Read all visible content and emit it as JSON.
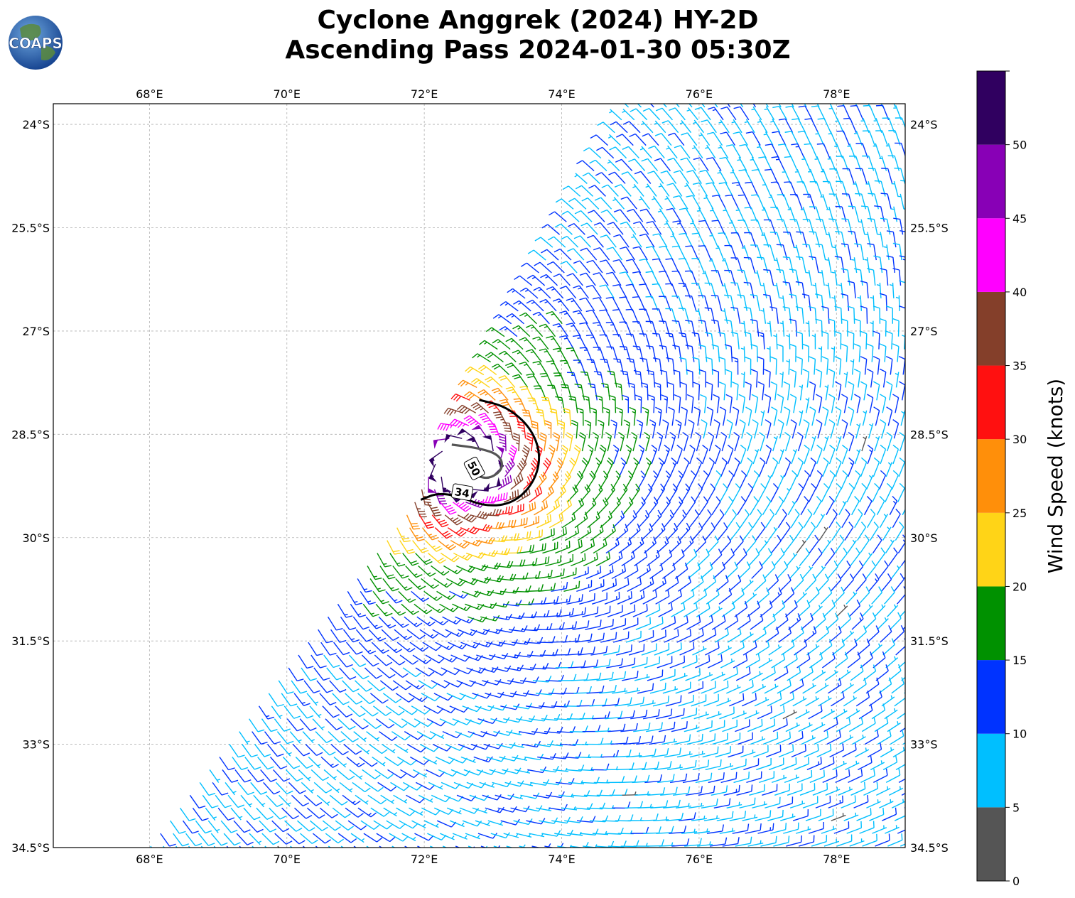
{
  "title": {
    "line1": "Cyclone Anggrek (2024) HY-2D",
    "line2": "Ascending Pass 2024-01-30 05:30Z"
  },
  "logo": {
    "text": "COAPS",
    "icon": "globe-icon"
  },
  "map": {
    "lon_range": [
      66.6,
      79.0
    ],
    "lat_range": [
      -34.5,
      -23.7
    ],
    "lon_ticks": [
      {
        "value": 68,
        "label": "68°E"
      },
      {
        "value": 70,
        "label": "70°E"
      },
      {
        "value": 72,
        "label": "72°E"
      },
      {
        "value": 74,
        "label": "74°E"
      },
      {
        "value": 76,
        "label": "76°E"
      },
      {
        "value": 78,
        "label": "78°E"
      }
    ],
    "lat_ticks": [
      {
        "value": -24,
        "label": "24°S"
      },
      {
        "value": -25.5,
        "label": "25.5°S"
      },
      {
        "value": -27,
        "label": "27°S"
      },
      {
        "value": -28.5,
        "label": "28.5°S"
      },
      {
        "value": -30,
        "label": "30°S"
      },
      {
        "value": -31.5,
        "label": "31.5°S"
      },
      {
        "value": -33,
        "label": "33°S"
      },
      {
        "value": -34.5,
        "label": "34.5°S"
      }
    ],
    "grid": true,
    "cyclone_center": {
      "lon": 72.6,
      "lat": -28.95
    },
    "contours": [
      {
        "label": "34",
        "speed_kt": 34,
        "color": "#000000",
        "points": [
          [
            72.8,
            -28.0
          ],
          [
            73.2,
            -28.1
          ],
          [
            73.55,
            -28.4
          ],
          [
            73.7,
            -28.8
          ],
          [
            73.6,
            -29.2
          ],
          [
            73.3,
            -29.5
          ],
          [
            72.9,
            -29.55
          ],
          [
            72.5,
            -29.4
          ],
          [
            72.2,
            -29.35
          ],
          [
            71.95,
            -29.45
          ]
        ]
      },
      {
        "label": "50",
        "speed_kt": 50,
        "color": "#555555",
        "points": [
          [
            72.4,
            -28.65
          ],
          [
            72.8,
            -28.7
          ],
          [
            73.1,
            -28.8
          ],
          [
            73.15,
            -29.0
          ],
          [
            72.95,
            -29.15
          ],
          [
            72.75,
            -29.1
          ]
        ]
      }
    ],
    "swath_edge": [
      [
        75.0,
        -23.7
      ],
      [
        71.8,
        -29.6
      ],
      [
        68.0,
        -34.5
      ]
    ]
  },
  "chart_data": {
    "type": "wind-barbs",
    "units": "knots",
    "scale": [
      {
        "min": 0,
        "max": 5,
        "color": "#555555"
      },
      {
        "min": 5,
        "max": 10,
        "color": "#00bfff"
      },
      {
        "min": 10,
        "max": 15,
        "color": "#0033ff"
      },
      {
        "min": 15,
        "max": 20,
        "color": "#009100"
      },
      {
        "min": 20,
        "max": 25,
        "color": "#ffd417"
      },
      {
        "min": 25,
        "max": 30,
        "color": "#ff8f0a"
      },
      {
        "min": 30,
        "max": 35,
        "color": "#ff1010"
      },
      {
        "min": 35,
        "max": 40,
        "color": "#843f2a"
      },
      {
        "min": 40,
        "max": 45,
        "color": "#ff00ff"
      },
      {
        "min": 45,
        "max": 50,
        "color": "#8800b6"
      },
      {
        "min": 50,
        "max": 55,
        "color": "#300060"
      }
    ],
    "contour_levels_kt": [
      34,
      50
    ]
  },
  "colorbar": {
    "label": "Wind Speed (knots)",
    "ticks": [
      "0",
      "5",
      "10",
      "15",
      "20",
      "25",
      "30",
      "35",
      "40",
      "45",
      "50"
    ]
  }
}
